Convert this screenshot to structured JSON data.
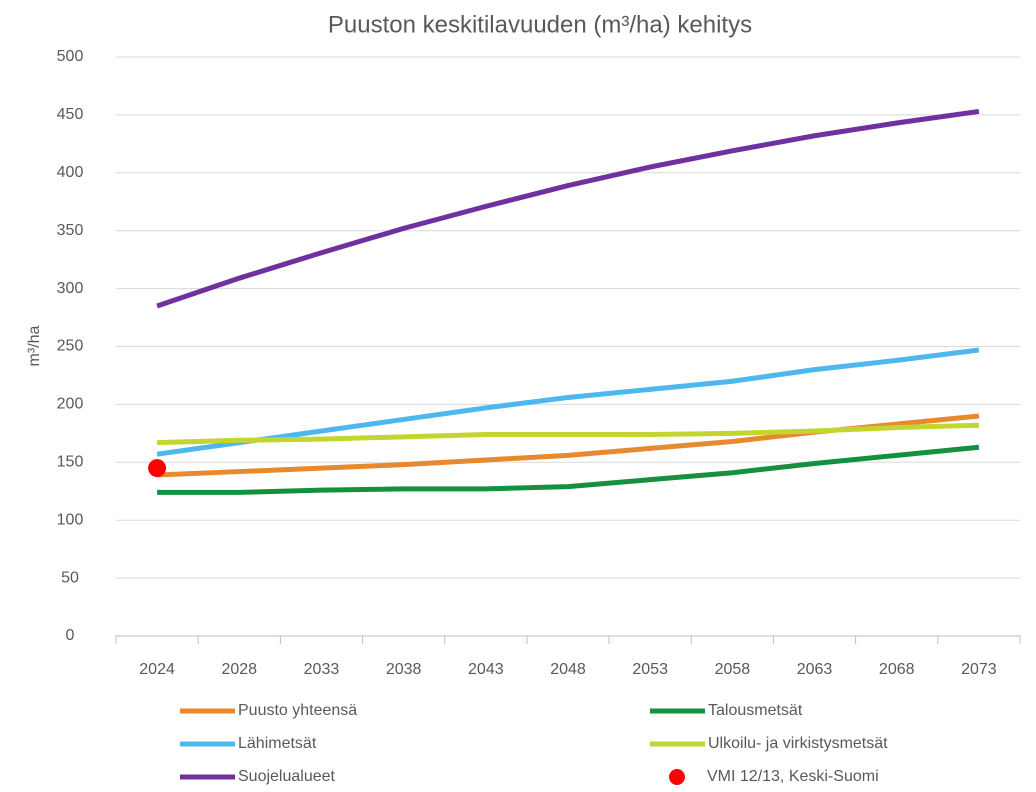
{
  "chart_data": {
    "type": "line",
    "title": "Puuston keskitilavuuden (m³/ha) kehitys",
    "y_label": "m³/ha",
    "categories": [
      "2024",
      "2028",
      "2033",
      "2038",
      "2043",
      "2048",
      "2053",
      "2058",
      "2063",
      "2068",
      "2073"
    ],
    "series": [
      {
        "name": "Puusto yhteensä",
        "color": "#e8892e",
        "values": [
          139,
          142,
          145,
          148,
          152,
          156,
          162,
          168,
          176,
          183,
          190
        ]
      },
      {
        "name": "Talousmetsät",
        "color": "#14913f",
        "values": [
          124,
          124,
          126,
          127,
          127,
          129,
          135,
          141,
          149,
          156,
          163
        ]
      },
      {
        "name": "Lähimetsät",
        "color": "#4db8f0",
        "values": [
          157,
          167,
          177,
          187,
          197,
          206,
          213,
          220,
          230,
          238,
          247
        ]
      },
      {
        "name": "Ulkoilu- ja virkistysmetsät",
        "color": "#c3d62f",
        "values": [
          167,
          169,
          170,
          172,
          174,
          174,
          174,
          175,
          177,
          180,
          182
        ]
      },
      {
        "name": "Suojelualueet",
        "color": "#7030a0",
        "values": [
          285,
          309,
          331,
          352,
          371,
          389,
          405,
          419,
          432,
          443,
          453
        ]
      },
      {
        "name": "VMI 12/13, Keski-Suomi",
        "color": "#ff0000",
        "mode": "markers",
        "values": [
          145,
          null,
          null,
          null,
          null,
          null,
          null,
          null,
          null,
          null,
          null
        ]
      }
    ],
    "ylim": [
      0,
      500
    ],
    "yticks": [
      0,
      50,
      100,
      150,
      200,
      250,
      300,
      350,
      400,
      450,
      500
    ],
    "grid": true,
    "legend": "bottom"
  }
}
